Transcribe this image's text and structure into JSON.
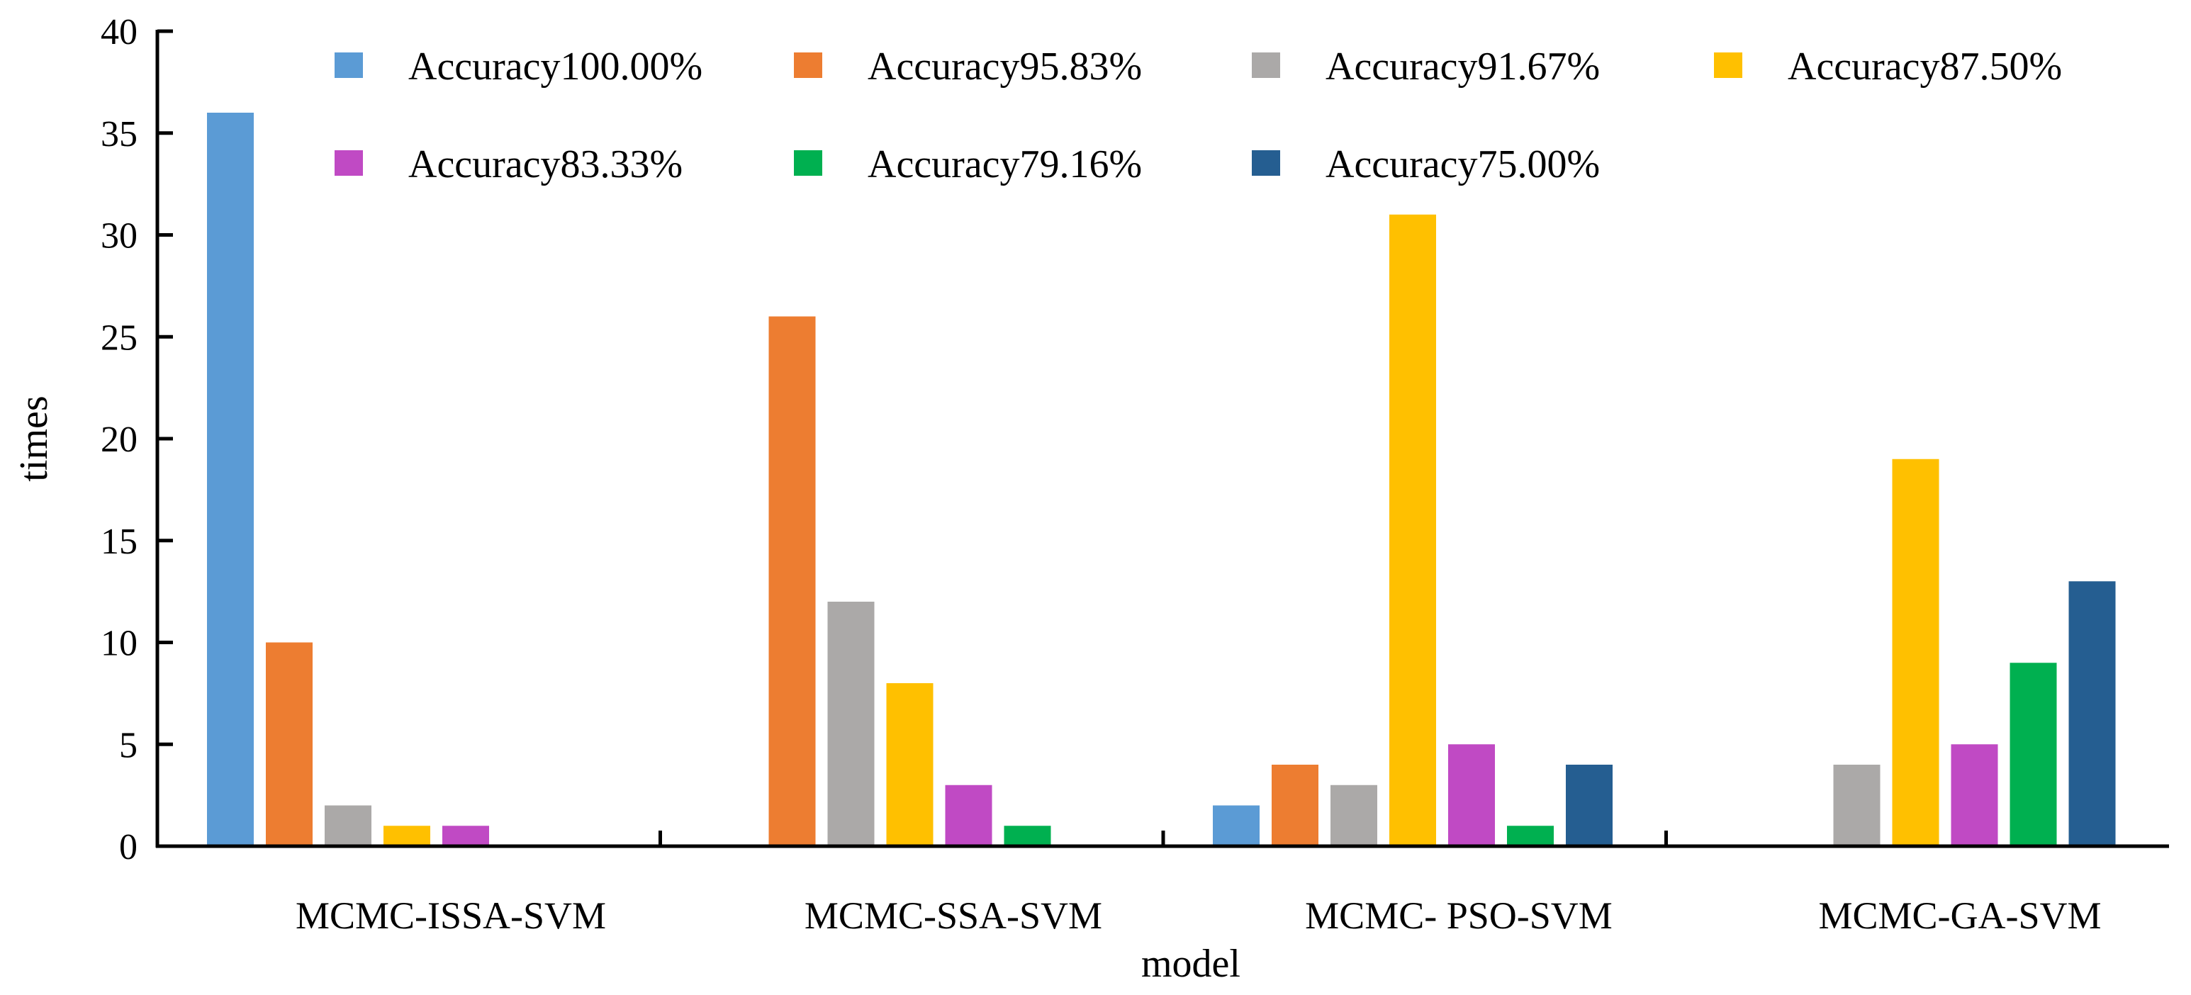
{
  "chart_data": {
    "type": "bar",
    "title": "",
    "xlabel": "model",
    "ylabel": "times",
    "ylim": [
      0,
      40
    ],
    "yticks": [
      "0",
      "5",
      "10",
      "15",
      "20",
      "25",
      "30",
      "35",
      "40"
    ],
    "grid": false,
    "legend_position": "top",
    "categories": [
      "MCMC-ISSA-SVM",
      "MCMC-SSA-SVM",
      "MCMC- PSO-SVM",
      "MCMC-GA-SVM"
    ],
    "series": [
      {
        "name": "Accuracy100.00%",
        "color": "#5B9BD5",
        "values": [
          36,
          0,
          2,
          0
        ]
      },
      {
        "name": "Accuracy95.83%",
        "color": "#ED7D31",
        "values": [
          10,
          26,
          4,
          0
        ]
      },
      {
        "name": "Accuracy91.67%",
        "color": "#ABA9A8",
        "values": [
          2,
          12,
          3,
          4
        ]
      },
      {
        "name": "Accuracy87.50%",
        "color": "#FFC000",
        "values": [
          1,
          8,
          31,
          19
        ]
      },
      {
        "name": "Accuracy83.33%",
        "color": "#C04AC4",
        "values": [
          1,
          3,
          5,
          5
        ]
      },
      {
        "name": "Accuracy79.16%",
        "color": "#00B050",
        "values": [
          0,
          1,
          1,
          9
        ]
      },
      {
        "name": "Accuracy75.00%",
        "color": "#255E91",
        "values": [
          0,
          0,
          4,
          13
        ]
      }
    ]
  }
}
